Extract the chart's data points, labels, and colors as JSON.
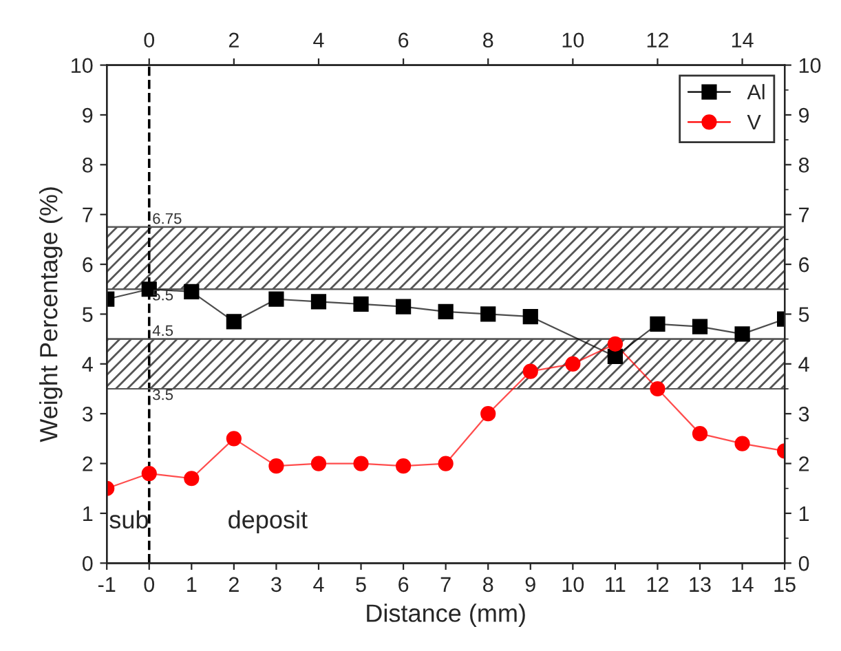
{
  "chart_data": {
    "type": "line",
    "xlabel": "Distance (mm)",
    "ylabel": "Weight Percentage (%)",
    "x": [
      -1,
      0,
      1,
      2,
      3,
      4,
      5,
      6,
      7,
      8,
      9,
      10,
      11,
      12,
      13,
      14,
      15
    ],
    "series": [
      {
        "name": "Al",
        "color": "#000000",
        "marker": "square",
        "x": [
          -1,
          0,
          1,
          2,
          3,
          4,
          5,
          6,
          7,
          8,
          9,
          11,
          12,
          13,
          14,
          15
        ],
        "values": [
          5.3,
          5.5,
          5.45,
          4.85,
          5.3,
          5.25,
          5.2,
          5.15,
          5.05,
          5.0,
          4.95,
          4.15,
          4.8,
          4.75,
          4.6,
          4.9
        ]
      },
      {
        "name": "V",
        "color": "#ff0000",
        "marker": "circle",
        "values": [
          1.5,
          1.8,
          1.7,
          2.5,
          1.95,
          2.0,
          2.0,
          1.95,
          2.0,
          3.0,
          3.85,
          4.0,
          4.4,
          3.5,
          2.6,
          2.4,
          2.25
        ]
      }
    ],
    "xlim": [
      -1,
      15
    ],
    "xticks": [
      -1,
      0,
      1,
      2,
      3,
      4,
      5,
      6,
      7,
      8,
      9,
      10,
      11,
      12,
      13,
      14,
      15
    ],
    "x2lim": [
      -1,
      15
    ],
    "x2ticks": [
      0,
      2,
      4,
      6,
      8,
      10,
      12,
      14
    ],
    "ylim": [
      0,
      10
    ],
    "yticks": [
      0,
      1,
      2,
      3,
      4,
      5,
      6,
      7,
      8,
      9,
      10
    ],
    "y2lim": [
      0,
      10
    ],
    "y2ticks": [
      0,
      1,
      2,
      3,
      4,
      5,
      6,
      7,
      8,
      9,
      10
    ],
    "bands": [
      {
        "axis": "y",
        "from": 5.5,
        "to": 6.75,
        "color": "#555555"
      },
      {
        "axis": "y",
        "from": 3.5,
        "to": 4.5,
        "color": "#555555"
      }
    ],
    "ref_lines": [
      {
        "axis": "x",
        "value": 0,
        "color": "#000000",
        "line_style": "dashed"
      },
      {
        "axis": "y",
        "value": 6.75,
        "label": "6.75",
        "color": "#555555"
      },
      {
        "axis": "y",
        "value": 5.5,
        "label": "5.5",
        "color": "#555555"
      },
      {
        "axis": "y",
        "value": 4.5,
        "label": "4.5",
        "color": "#555555"
      },
      {
        "axis": "y",
        "value": 3.5,
        "label": "3.5",
        "color": "#555555"
      }
    ],
    "annotations": [
      "sub",
      "deposit"
    ],
    "legend": "top right",
    "grid": false
  }
}
